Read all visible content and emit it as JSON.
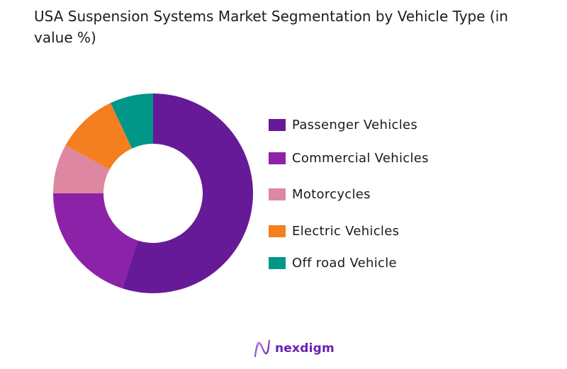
{
  "title": "USA Suspension Systems Market Segmentation by Vehicle Type (in value %)",
  "logo": {
    "text": "nexdigm",
    "icon": "nexdigm-wave-icon",
    "color": "#6a1fb0"
  },
  "chart_data": {
    "type": "pie",
    "subtype": "donut",
    "title": "USA Suspension Systems Market Segmentation by Vehicle Type (in value %)",
    "categories": [
      "Passenger Vehicles",
      "Commercial Vehicles",
      "Motorcycles",
      "Electric Vehicles",
      "Off road Vehicle"
    ],
    "values": [
      55,
      20,
      8,
      10,
      7
    ],
    "colors": [
      "#671a97",
      "#8b22a8",
      "#dd88a0",
      "#f47f20",
      "#009688"
    ],
    "unit": "%",
    "start_angle": "top, clockwise",
    "legend_position": "right",
    "data_labels": false
  },
  "legend": {
    "items": [
      {
        "label": "Passenger Vehicles",
        "color": "#671a97"
      },
      {
        "label": "Commercial Vehicles",
        "color": "#8b22a8"
      },
      {
        "label": "Motorcycles",
        "color": "#dd88a0"
      },
      {
        "label": "Electric Vehicles",
        "color": "#f47f20"
      },
      {
        "label": "Off road Vehicle",
        "color": "#009688"
      }
    ]
  }
}
